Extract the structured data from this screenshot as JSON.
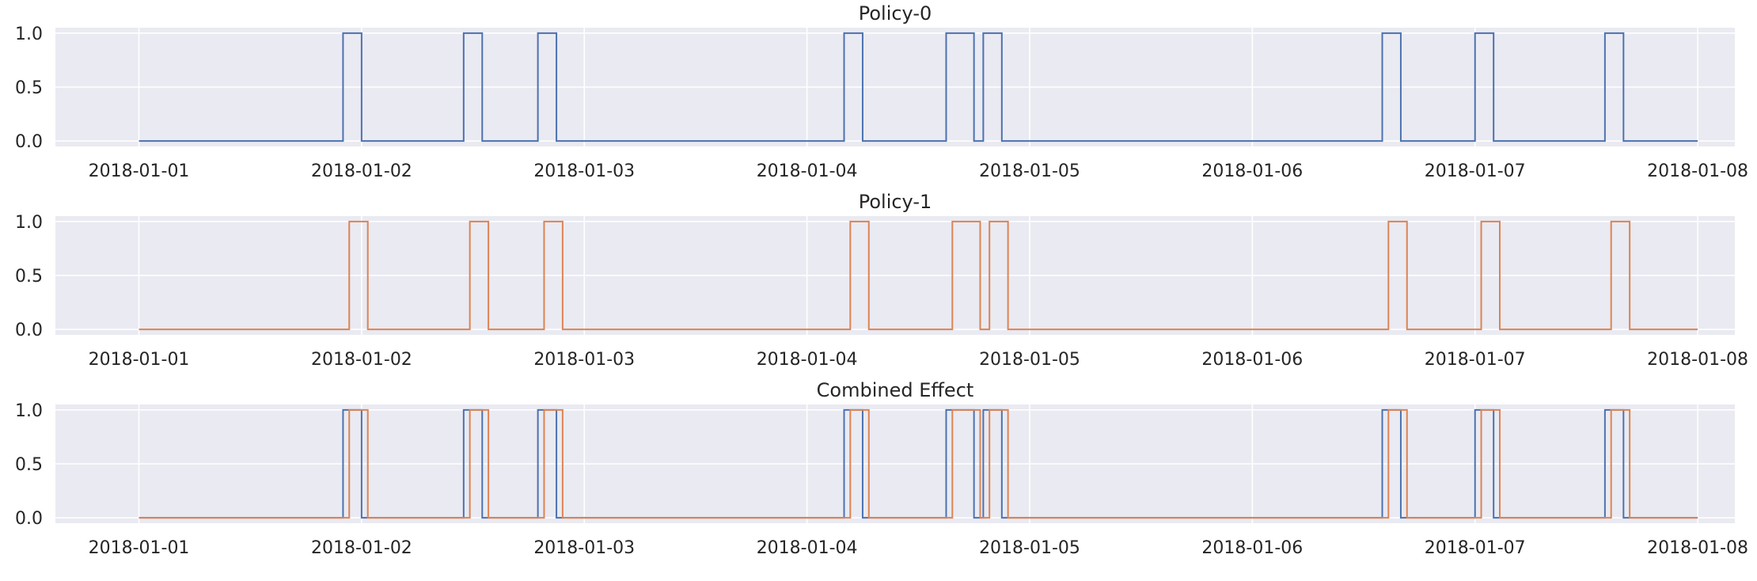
{
  "chart_data": [
    {
      "type": "line",
      "title": "Policy-0",
      "xlabel": "",
      "ylabel": "",
      "x_ticks": [
        "2018-01-01",
        "2018-01-02",
        "2018-01-03",
        "2018-01-04",
        "2018-01-05",
        "2018-01-06",
        "2018-01-07",
        "2018-01-08"
      ],
      "y_ticks": [
        "0.0",
        "0.5",
        "1.0"
      ],
      "xlim": [
        "2017-12-31 15:00",
        "2018-01-08 04:00"
      ],
      "ylim": [
        -0.05,
        1.05
      ],
      "grid": true,
      "series": [
        {
          "color": "#4c72b0",
          "step": "post",
          "points": [
            [
              "2018-01-01 00:00",
              0
            ],
            [
              "2018-01-01 22:00",
              1
            ],
            [
              "2018-01-02 00:00",
              0
            ],
            [
              "2018-01-02 11:00",
              1
            ],
            [
              "2018-01-02 13:00",
              0
            ],
            [
              "2018-01-02 19:00",
              1
            ],
            [
              "2018-01-02 21:00",
              0
            ],
            [
              "2018-01-04 04:00",
              1
            ],
            [
              "2018-01-04 06:00",
              0
            ],
            [
              "2018-01-04 15:00",
              1
            ],
            [
              "2018-01-04 18:00",
              0
            ],
            [
              "2018-01-04 19:00",
              1
            ],
            [
              "2018-01-04 21:00",
              0
            ],
            [
              "2018-01-06 14:00",
              1
            ],
            [
              "2018-01-06 16:00",
              0
            ],
            [
              "2018-01-07 00:00",
              1
            ],
            [
              "2018-01-07 02:00",
              0
            ],
            [
              "2018-01-07 14:00",
              1
            ],
            [
              "2018-01-07 16:00",
              0
            ],
            [
              "2018-01-08 00:00",
              0
            ]
          ]
        }
      ]
    },
    {
      "type": "line",
      "title": "Policy-1",
      "xlabel": "",
      "ylabel": "",
      "x_ticks": [
        "2018-01-01",
        "2018-01-02",
        "2018-01-03",
        "2018-01-04",
        "2018-01-05",
        "2018-01-06",
        "2018-01-07",
        "2018-01-08"
      ],
      "y_ticks": [
        "0.0",
        "0.5",
        "1.0"
      ],
      "xlim": [
        "2017-12-31 15:00",
        "2018-01-08 04:00"
      ],
      "ylim": [
        -0.05,
        1.05
      ],
      "grid": true,
      "series": [
        {
          "color": "#dd8452",
          "step": "post",
          "points": [
            [
              "2018-01-01 00:00",
              0
            ],
            [
              "2018-01-01 22:40",
              1
            ],
            [
              "2018-01-02 00:40",
              0
            ],
            [
              "2018-01-02 11:40",
              1
            ],
            [
              "2018-01-02 13:40",
              0
            ],
            [
              "2018-01-02 19:40",
              1
            ],
            [
              "2018-01-02 21:40",
              0
            ],
            [
              "2018-01-04 04:40",
              1
            ],
            [
              "2018-01-04 06:40",
              0
            ],
            [
              "2018-01-04 15:40",
              1
            ],
            [
              "2018-01-04 18:40",
              0
            ],
            [
              "2018-01-04 19:40",
              1
            ],
            [
              "2018-01-04 21:40",
              0
            ],
            [
              "2018-01-06 14:40",
              1
            ],
            [
              "2018-01-06 16:40",
              0
            ],
            [
              "2018-01-07 00:40",
              1
            ],
            [
              "2018-01-07 02:40",
              0
            ],
            [
              "2018-01-07 14:40",
              1
            ],
            [
              "2018-01-07 16:40",
              0
            ],
            [
              "2018-01-08 00:00",
              0
            ]
          ]
        }
      ]
    },
    {
      "type": "line",
      "title": "Combined Effect",
      "xlabel": "",
      "ylabel": "",
      "x_ticks": [
        "2018-01-01",
        "2018-01-02",
        "2018-01-03",
        "2018-01-04",
        "2018-01-05",
        "2018-01-06",
        "2018-01-07",
        "2018-01-08"
      ],
      "y_ticks": [
        "0.0",
        "0.5",
        "1.0"
      ],
      "xlim": [
        "2017-12-31 15:00",
        "2018-01-08 04:00"
      ],
      "ylim": [
        -0.05,
        1.05
      ],
      "grid": true,
      "series": [
        {
          "color": "#4c72b0",
          "step": "post",
          "points": [
            [
              "2018-01-01 00:00",
              0
            ],
            [
              "2018-01-01 22:00",
              1
            ],
            [
              "2018-01-02 00:00",
              0
            ],
            [
              "2018-01-02 11:00",
              1
            ],
            [
              "2018-01-02 13:00",
              0
            ],
            [
              "2018-01-02 19:00",
              1
            ],
            [
              "2018-01-02 21:00",
              0
            ],
            [
              "2018-01-04 04:00",
              1
            ],
            [
              "2018-01-04 06:00",
              0
            ],
            [
              "2018-01-04 15:00",
              1
            ],
            [
              "2018-01-04 18:00",
              0
            ],
            [
              "2018-01-04 19:00",
              1
            ],
            [
              "2018-01-04 21:00",
              0
            ],
            [
              "2018-01-06 14:00",
              1
            ],
            [
              "2018-01-06 16:00",
              0
            ],
            [
              "2018-01-07 00:00",
              1
            ],
            [
              "2018-01-07 02:00",
              0
            ],
            [
              "2018-01-07 14:00",
              1
            ],
            [
              "2018-01-07 16:00",
              0
            ],
            [
              "2018-01-08 00:00",
              0
            ]
          ]
        },
        {
          "color": "#dd8452",
          "step": "post",
          "points": [
            [
              "2018-01-01 00:00",
              0
            ],
            [
              "2018-01-01 22:40",
              1
            ],
            [
              "2018-01-02 00:40",
              0
            ],
            [
              "2018-01-02 11:40",
              1
            ],
            [
              "2018-01-02 13:40",
              0
            ],
            [
              "2018-01-02 19:40",
              1
            ],
            [
              "2018-01-02 21:40",
              0
            ],
            [
              "2018-01-04 04:40",
              1
            ],
            [
              "2018-01-04 06:40",
              0
            ],
            [
              "2018-01-04 15:40",
              1
            ],
            [
              "2018-01-04 18:40",
              0
            ],
            [
              "2018-01-04 19:40",
              1
            ],
            [
              "2018-01-04 21:40",
              0
            ],
            [
              "2018-01-06 14:40",
              1
            ],
            [
              "2018-01-06 16:40",
              0
            ],
            [
              "2018-01-07 00:40",
              1
            ],
            [
              "2018-01-07 02:40",
              0
            ],
            [
              "2018-01-07 14:40",
              1
            ],
            [
              "2018-01-07 16:40",
              0
            ],
            [
              "2018-01-08 00:00",
              0
            ]
          ]
        }
      ]
    }
  ]
}
